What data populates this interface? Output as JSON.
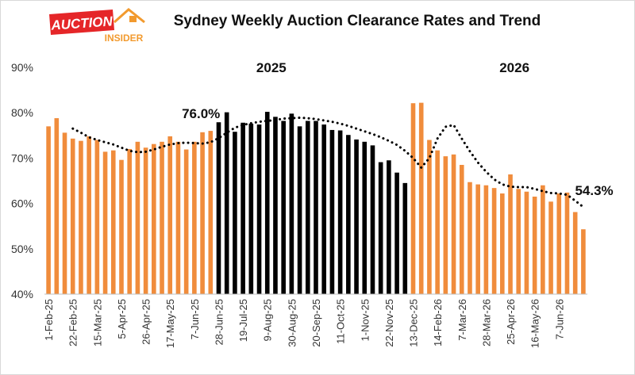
{
  "logo": {
    "text_top": "AUCTION",
    "text_bottom": "INSIDER",
    "colors": {
      "red": "#e52628",
      "orange": "#f29a2e"
    }
  },
  "chart_data": {
    "type": "bar",
    "title": "Sydney Weekly Auction Clearance Rates and Trend",
    "xlabel": "",
    "ylabel": "",
    "ylim": [
      40,
      90
    ],
    "y_ticks": [
      "40%",
      "50%",
      "60%",
      "70%",
      "80%",
      "90%"
    ],
    "grid": false,
    "legend": "none",
    "x_tick_labels": [
      "1-Feb-25",
      "22-Feb-25",
      "15-Mar-25",
      "5-Apr-25",
      "26-Apr-25",
      "17-May-25",
      "7-Jun-25",
      "28-Jun-25",
      "19-Jul-25",
      "9-Aug-25",
      "30-Aug-25",
      "20-Sep-25",
      "11-Oct-25",
      "1-Nov-25",
      "22-Nov-25",
      "13-Dec-25",
      "14-Feb-26",
      "7-Mar-26",
      "28-Mar-26",
      "25-Apr-26",
      "16-May-26",
      "7-Jun-26"
    ],
    "year_labels": [
      {
        "text": "2025",
        "anchor_bar": 27.5
      },
      {
        "text": "2026",
        "anchor_bar": 57.5
      }
    ],
    "annotations": [
      {
        "text": "76.0%",
        "bar": 20
      },
      {
        "text": "54.3%",
        "bar": 64
      }
    ],
    "colors": {
      "orange": "#f08c3c",
      "black": "#000000",
      "trend": "#000000"
    },
    "series": [
      {
        "values": [
          77.0,
          78.8,
          75.6,
          74.3,
          73.8,
          74.8,
          74.0,
          71.4,
          71.7,
          69.6,
          72.0,
          73.6,
          72.3,
          73.1,
          73.6,
          74.8,
          73.6,
          71.9,
          73.6,
          75.7,
          76.0,
          77.9,
          80.1,
          75.8,
          77.8,
          77.6,
          77.4,
          80.2,
          79.1,
          78.2,
          79.8,
          77.0,
          78.2,
          78.2,
          77.4,
          76.2,
          76.1,
          75.1,
          74.1,
          73.6,
          72.8,
          69.1,
          69.5,
          66.8,
          64.5,
          82.1,
          82.2,
          74.0,
          71.7,
          70.4,
          70.8,
          68.5,
          64.7,
          64.2,
          64.0,
          63.4,
          62.2,
          66.4,
          63.2,
          62.6,
          61.5,
          64.0,
          60.4,
          62.2,
          62.4,
          58.1,
          54.3
        ],
        "colors": [
          "o",
          "o",
          "o",
          "o",
          "o",
          "o",
          "o",
          "o",
          "o",
          "o",
          "o",
          "o",
          "o",
          "o",
          "o",
          "o",
          "o",
          "o",
          "o",
          "o",
          "o",
          "k",
          "k",
          "k",
          "k",
          "k",
          "k",
          "k",
          "k",
          "k",
          "k",
          "k",
          "k",
          "k",
          "k",
          "k",
          "k",
          "k",
          "k",
          "k",
          "k",
          "k",
          "k",
          "k",
          "k",
          "o",
          "o",
          "o",
          "o",
          "o",
          "o",
          "o",
          "o",
          "o",
          "o",
          "o",
          "o",
          "o",
          "o",
          "o",
          "o",
          "o",
          "o",
          "o",
          "o",
          "o",
          "o"
        ]
      }
    ],
    "trend": {
      "start_bar": 3,
      "values": [
        76.5,
        75.6,
        74.6,
        74.0,
        73.5,
        73.0,
        72.3,
        71.6,
        71.3,
        71.4,
        71.9,
        72.5,
        73.0,
        73.3,
        73.4,
        73.3,
        73.2,
        73.5,
        74.4,
        75.6,
        76.7,
        77.3,
        77.7,
        78.0,
        78.2,
        78.4,
        78.7,
        78.8,
        78.9,
        78.8,
        78.6,
        78.3,
        78.0,
        77.6,
        77.1,
        76.5,
        75.9,
        75.3,
        74.6,
        73.8,
        72.9,
        71.6,
        70.0,
        67.9,
        70.0,
        74.3,
        76.9,
        77.3,
        74.3,
        71.5,
        69.0,
        67.0,
        65.3,
        64.2,
        63.7,
        63.6,
        63.6,
        63.2,
        62.7,
        62.3,
        62.2,
        61.9,
        60.6,
        59.2
      ]
    }
  }
}
